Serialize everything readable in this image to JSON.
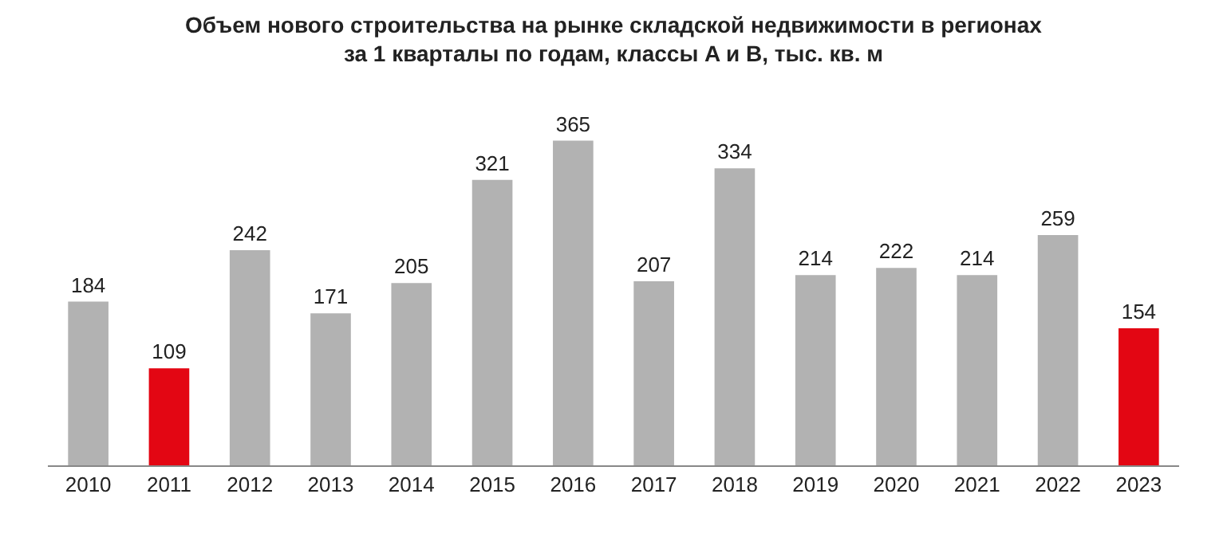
{
  "chart_data": {
    "type": "bar",
    "title": "Объем нового строительства на рынке складской недвижимости в регионах\nза 1 кварталы по годам, классы A и B, тыс. кв. м",
    "categories": [
      "2010",
      "2011",
      "2012",
      "2013",
      "2014",
      "2015",
      "2016",
      "2017",
      "2018",
      "2019",
      "2020",
      "2021",
      "2022",
      "2023"
    ],
    "values": [
      184,
      109,
      242,
      171,
      205,
      321,
      365,
      207,
      334,
      214,
      222,
      214,
      259,
      154
    ],
    "colors": [
      "#b2b2b2",
      "#e30613",
      "#b2b2b2",
      "#b2b2b2",
      "#b2b2b2",
      "#b2b2b2",
      "#b2b2b2",
      "#b2b2b2",
      "#b2b2b2",
      "#b2b2b2",
      "#b2b2b2",
      "#b2b2b2",
      "#b2b2b2",
      "#e30613"
    ],
    "data_labels": true,
    "legend": false
  }
}
